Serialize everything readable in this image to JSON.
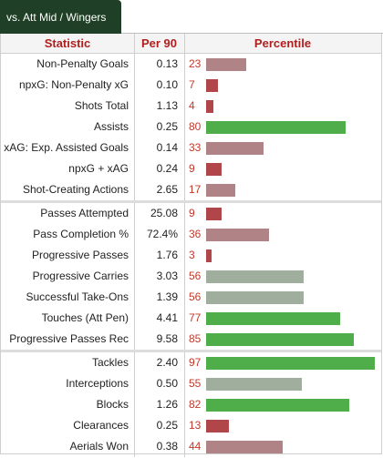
{
  "tab": {
    "label": "vs. Att Mid / Wingers"
  },
  "header": {
    "statistic": "Statistic",
    "per90": "Per 90",
    "percentile": "Percentile"
  },
  "colors": {
    "tab_bg": "#1f4026",
    "header_text": "#b01e1e",
    "percentile_text": "#c0392b",
    "bar_low": "#b0454a",
    "bar_mid_low": "#b08387",
    "bar_mid_high": "#a0af9d",
    "bar_high": "#4fad4a"
  },
  "groups": [
    {
      "rows": [
        {
          "stat": "Non-Penalty Goals",
          "per90": "0.13",
          "percentile": 23
        },
        {
          "stat": "npxG: Non-Penalty xG",
          "per90": "0.10",
          "percentile": 7
        },
        {
          "stat": "Shots Total",
          "per90": "1.13",
          "percentile": 4
        },
        {
          "stat": "Assists",
          "per90": "0.25",
          "percentile": 80
        },
        {
          "stat": "xAG: Exp. Assisted Goals",
          "per90": "0.14",
          "percentile": 33
        },
        {
          "stat": "npxG + xAG",
          "per90": "0.24",
          "percentile": 9
        },
        {
          "stat": "Shot-Creating Actions",
          "per90": "2.65",
          "percentile": 17
        }
      ]
    },
    {
      "rows": [
        {
          "stat": "Passes Attempted",
          "per90": "25.08",
          "percentile": 9
        },
        {
          "stat": "Pass Completion %",
          "per90": "72.4%",
          "percentile": 36
        },
        {
          "stat": "Progressive Passes",
          "per90": "1.76",
          "percentile": 3
        },
        {
          "stat": "Progressive Carries",
          "per90": "3.03",
          "percentile": 56
        },
        {
          "stat": "Successful Take-Ons",
          "per90": "1.39",
          "percentile": 56
        },
        {
          "stat": "Touches (Att Pen)",
          "per90": "4.41",
          "percentile": 77
        },
        {
          "stat": "Progressive Passes Rec",
          "per90": "9.58",
          "percentile": 85
        }
      ]
    },
    {
      "rows": [
        {
          "stat": "Tackles",
          "per90": "2.40",
          "percentile": 97
        },
        {
          "stat": "Interceptions",
          "per90": "0.50",
          "percentile": 55
        },
        {
          "stat": "Blocks",
          "per90": "1.26",
          "percentile": 82
        },
        {
          "stat": "Clearances",
          "per90": "0.25",
          "percentile": 13
        },
        {
          "stat": "Aerials Won",
          "per90": "0.38",
          "percentile": 44
        }
      ]
    }
  ]
}
